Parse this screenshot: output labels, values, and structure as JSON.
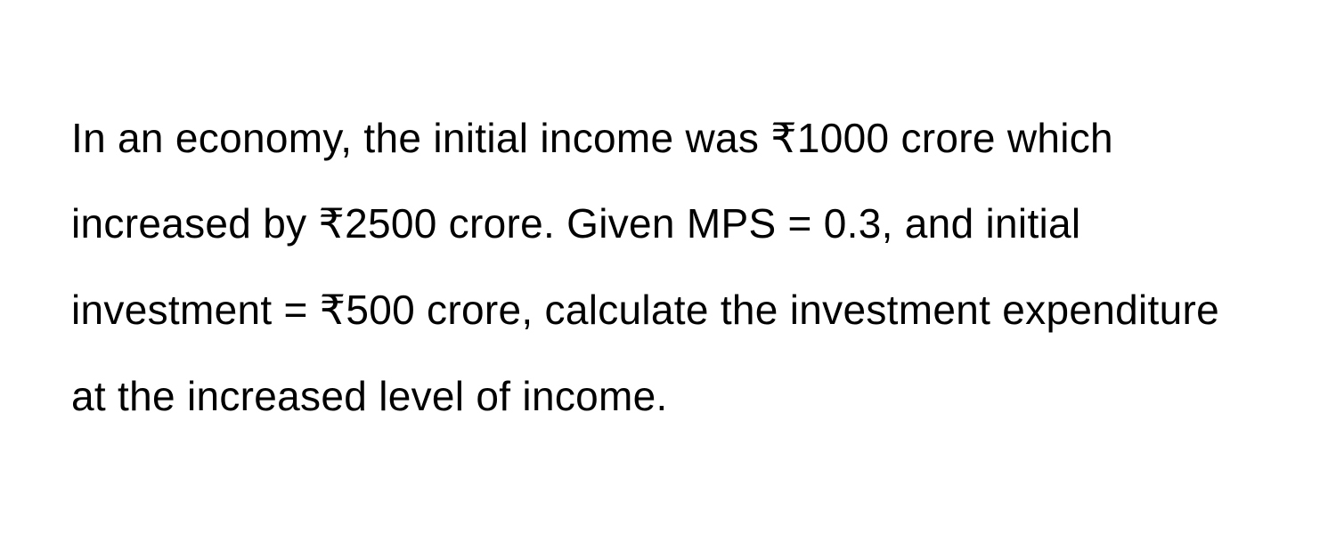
{
  "problem": {
    "text": "In an economy, the initial income was ₹1000 crore which increased by ₹2500 crore. Given MPS = 0.3, and initial investment = ₹500 crore, calculate the investment expenditure at the increased level of income.",
    "font_size": 46,
    "line_height": 2.1,
    "text_color": "#000000",
    "background_color": "#ffffff"
  }
}
